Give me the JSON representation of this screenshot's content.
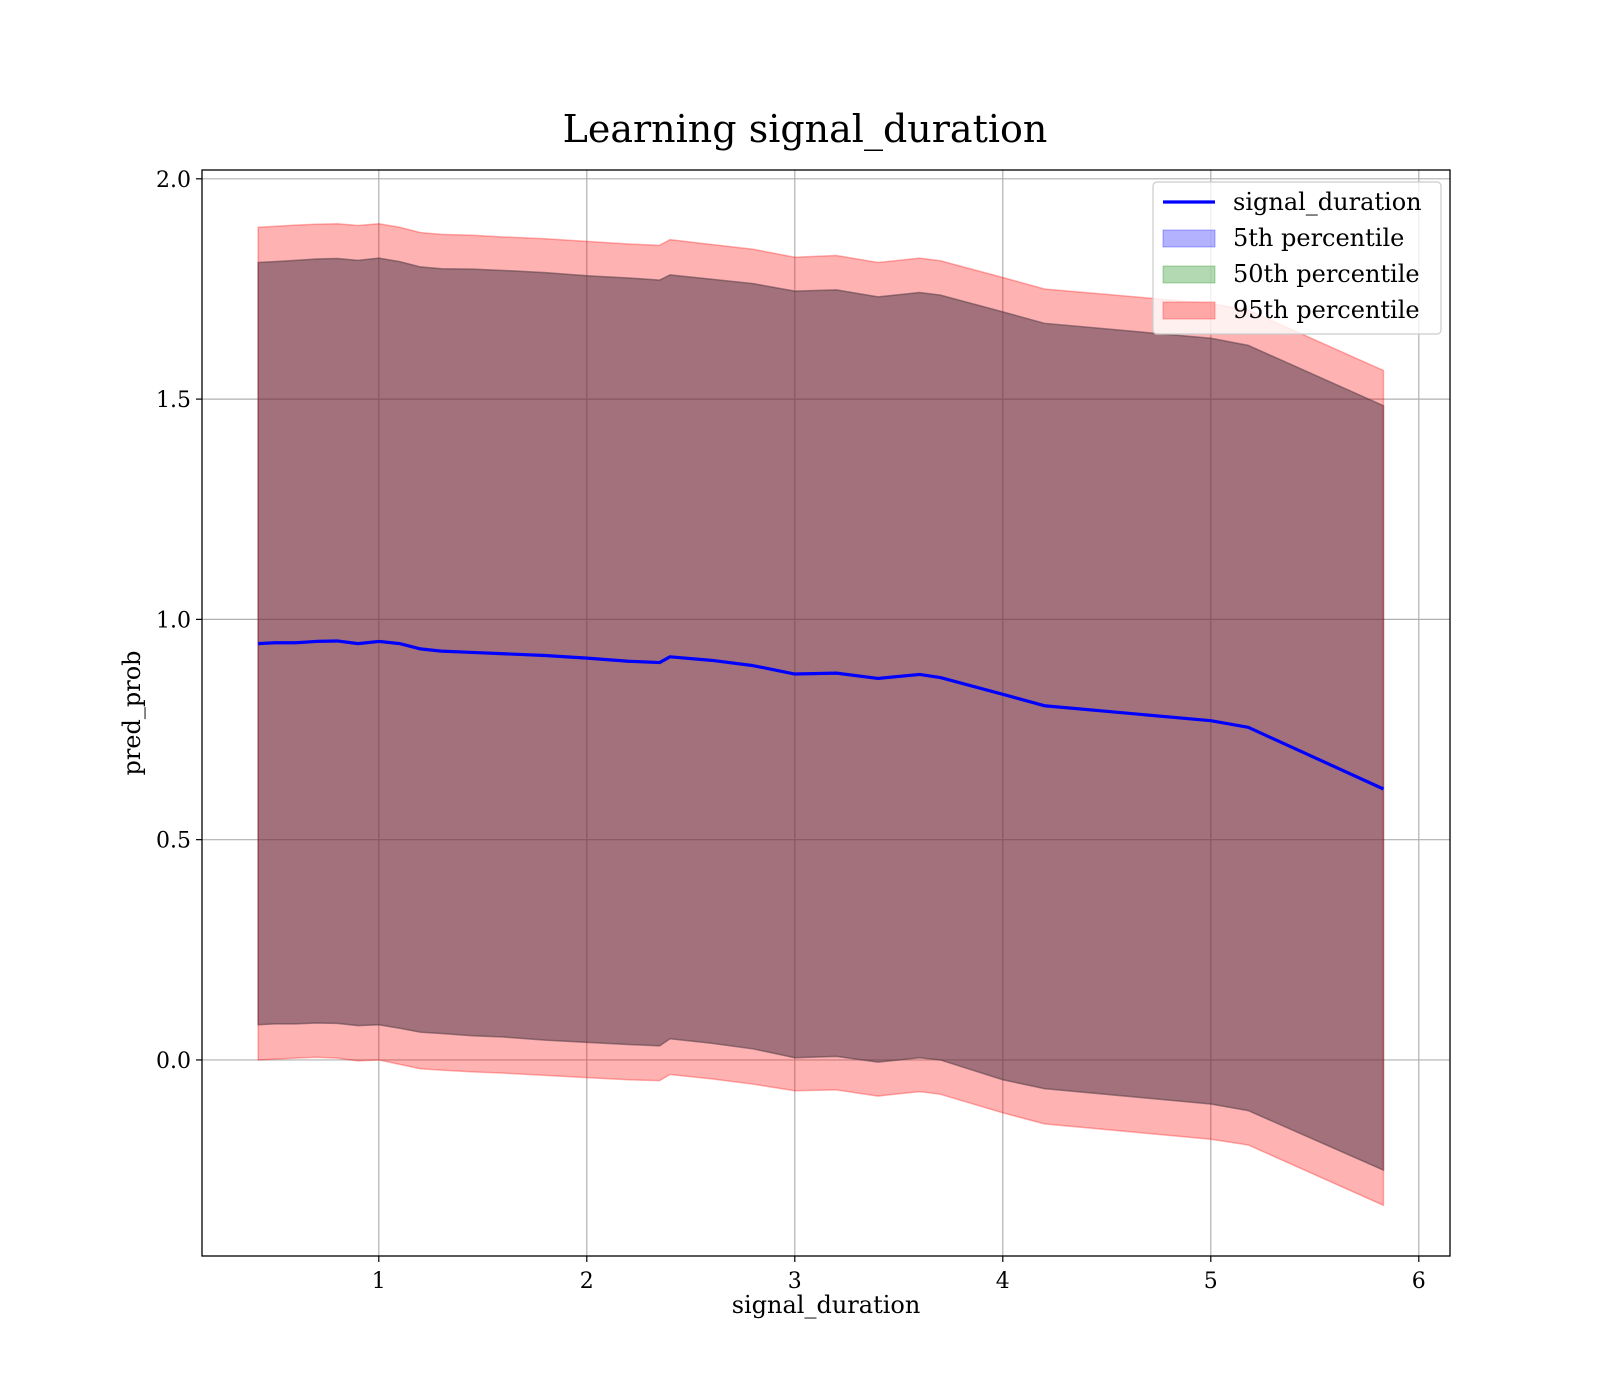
{
  "chart_data": {
    "type": "line",
    "title": "Learning signal_duration",
    "xlabel": "signal_duration",
    "ylabel": "pred_prob",
    "xlim": [
      0.15,
      6.15
    ],
    "ylim": [
      -0.445,
      2.02
    ],
    "xticks": [
      1,
      2,
      3,
      4,
      5,
      6
    ],
    "xtick_labels": [
      "1",
      "2",
      "3",
      "4",
      "5",
      "6"
    ],
    "yticks": [
      0.0,
      0.5,
      1.0,
      1.5,
      2.0
    ],
    "ytick_labels": [
      "0.0",
      "0.5",
      "1.0",
      "1.5",
      "2.0"
    ],
    "grid": true,
    "legend_position": "top-right",
    "x": [
      0.42,
      0.5,
      0.6,
      0.7,
      0.8,
      0.9,
      1.0,
      1.1,
      1.2,
      1.3,
      1.45,
      1.6,
      1.8,
      2.0,
      2.2,
      2.35,
      2.4,
      2.6,
      2.8,
      3.0,
      3.2,
      3.4,
      3.6,
      3.7,
      4.0,
      4.2,
      5.0,
      5.18,
      5.83
    ],
    "series": [
      {
        "name": "signal_duration",
        "color": "#0000ff",
        "values": [
          0.945,
          0.947,
          0.947,
          0.95,
          0.951,
          0.945,
          0.95,
          0.945,
          0.933,
          0.928,
          0.925,
          0.922,
          0.918,
          0.912,
          0.905,
          0.902,
          0.915,
          0.907,
          0.895,
          0.876,
          0.878,
          0.866,
          0.875,
          0.868,
          0.83,
          0.804,
          0.77,
          0.755,
          0.615
        ]
      }
    ],
    "bands": [
      {
        "name": "5th percentile",
        "color": "#0000ff",
        "lower": [
          0.08,
          0.082,
          0.082,
          0.084,
          0.083,
          0.078,
          0.08,
          0.072,
          0.063,
          0.06,
          0.055,
          0.052,
          0.045,
          0.04,
          0.035,
          0.032,
          0.048,
          0.038,
          0.025,
          0.005,
          0.008,
          -0.005,
          0.005,
          0.0,
          -0.045,
          -0.065,
          -0.1,
          -0.115,
          -0.25
        ],
        "upper": [
          1.81,
          1.812,
          1.815,
          1.818,
          1.819,
          1.815,
          1.82,
          1.812,
          1.8,
          1.796,
          1.795,
          1.792,
          1.787,
          1.78,
          1.775,
          1.77,
          1.782,
          1.772,
          1.762,
          1.745,
          1.748,
          1.732,
          1.742,
          1.736,
          1.698,
          1.672,
          1.638,
          1.622,
          1.485
        ]
      },
      {
        "name": "50th percentile",
        "color": "#008000",
        "lower": [
          0.08,
          0.082,
          0.082,
          0.084,
          0.083,
          0.078,
          0.08,
          0.072,
          0.063,
          0.06,
          0.055,
          0.052,
          0.045,
          0.04,
          0.035,
          0.032,
          0.048,
          0.038,
          0.025,
          0.005,
          0.008,
          -0.005,
          0.005,
          0.0,
          -0.045,
          -0.065,
          -0.1,
          -0.115,
          -0.25
        ],
        "upper": [
          1.81,
          1.812,
          1.815,
          1.818,
          1.819,
          1.815,
          1.82,
          1.812,
          1.8,
          1.796,
          1.795,
          1.792,
          1.787,
          1.78,
          1.775,
          1.77,
          1.782,
          1.772,
          1.762,
          1.745,
          1.748,
          1.732,
          1.742,
          1.736,
          1.698,
          1.672,
          1.638,
          1.622,
          1.485
        ]
      },
      {
        "name": "95th percentile",
        "color": "#ff0000",
        "lower": [
          0.0,
          0.002,
          0.004,
          0.006,
          0.004,
          -0.002,
          0.0,
          -0.01,
          -0.02,
          -0.023,
          -0.027,
          -0.03,
          -0.035,
          -0.04,
          -0.045,
          -0.047,
          -0.033,
          -0.043,
          -0.055,
          -0.07,
          -0.068,
          -0.082,
          -0.072,
          -0.078,
          -0.12,
          -0.145,
          -0.18,
          -0.193,
          -0.33
        ],
        "upper": [
          1.89,
          1.892,
          1.895,
          1.897,
          1.898,
          1.894,
          1.898,
          1.89,
          1.878,
          1.874,
          1.872,
          1.868,
          1.864,
          1.858,
          1.852,
          1.849,
          1.862,
          1.851,
          1.84,
          1.822,
          1.826,
          1.81,
          1.82,
          1.814,
          1.776,
          1.75,
          1.717,
          1.702,
          1.565
        ]
      }
    ]
  }
}
